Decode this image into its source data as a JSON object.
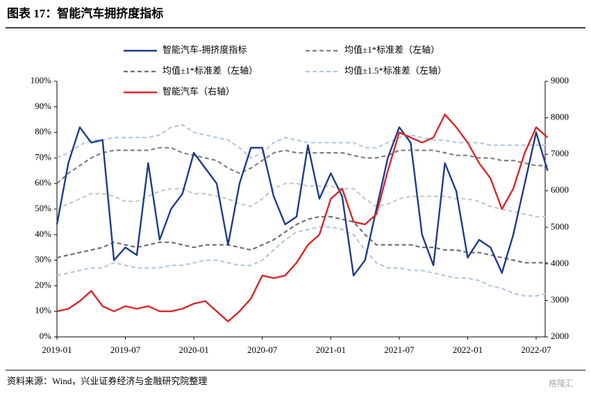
{
  "chart_data": {
    "type": "line",
    "title": "图表 17：智能汽车拥挤度指标",
    "source": "资料来源：Wind，兴业证券经济与金融研究院整理",
    "watermark": "格隆汇",
    "x": [
      "2019-01",
      "2019-02",
      "2019-03",
      "2019-04",
      "2019-05",
      "2019-06",
      "2019-07",
      "2019-08",
      "2019-09",
      "2019-10",
      "2019-11",
      "2019-12",
      "2020-01",
      "2020-02",
      "2020-03",
      "2020-04",
      "2020-05",
      "2020-06",
      "2020-07",
      "2020-08",
      "2020-09",
      "2020-10",
      "2020-11",
      "2020-12",
      "2021-01",
      "2021-02",
      "2021-03",
      "2021-04",
      "2021-05",
      "2021-06",
      "2021-07",
      "2021-08",
      "2021-09",
      "2021-10",
      "2021-11",
      "2021-12",
      "2022-01",
      "2022-02",
      "2022-03",
      "2022-04",
      "2022-05",
      "2022-06",
      "2022-07",
      "2022-08"
    ],
    "xticks": [
      "2019-01",
      "2019-07",
      "2020-01",
      "2020-07",
      "2021-01",
      "2021-07",
      "2022-01",
      "2022-07"
    ],
    "ylim": [
      0,
      100
    ],
    "yticks": [
      {
        "value": 0,
        "label": "0%"
      },
      {
        "value": 10,
        "label": "10%"
      },
      {
        "value": 20,
        "label": "20%"
      },
      {
        "value": 30,
        "label": "30%"
      },
      {
        "value": 40,
        "label": "40%"
      },
      {
        "value": 50,
        "label": "50%"
      },
      {
        "value": 60,
        "label": "60%"
      },
      {
        "value": 70,
        "label": "70%"
      },
      {
        "value": 80,
        "label": "80%"
      },
      {
        "value": 90,
        "label": "90%"
      },
      {
        "value": 100,
        "label": "100%"
      }
    ],
    "y2lim": [
      2000,
      9000
    ],
    "y2ticks": [
      2000,
      3000,
      4000,
      5000,
      6000,
      7000,
      8000,
      9000
    ],
    "series": [
      {
        "name": "智能汽车-拥挤度指标",
        "color": "#1f3a8a",
        "values": [
          44,
          68,
          82,
          76,
          77,
          30,
          35,
          32,
          68,
          38,
          50,
          56,
          72,
          66,
          60,
          36,
          60,
          74,
          74,
          55,
          44,
          47,
          75,
          54,
          64,
          55,
          24,
          30,
          50,
          70,
          82,
          76,
          40,
          28,
          68,
          57,
          31,
          38,
          35,
          25,
          40,
          60,
          80,
          65
        ]
      },
      {
        "name": "均值±1*标准差（左轴）",
        "color": "#808080",
        "dashed": true,
        "values": [
          60,
          64,
          67,
          70,
          72,
          73,
          73,
          73,
          73,
          74,
          74,
          72,
          71,
          70,
          69,
          66,
          64,
          66,
          69,
          72,
          73,
          72,
          72,
          72,
          72,
          72,
          71,
          70,
          70,
          71,
          73,
          73,
          73,
          73,
          72,
          71,
          71,
          70,
          70,
          69,
          69,
          68,
          67,
          67
        ]
      },
      {
        "name": "均值±1*标准差（左轴）",
        "color": "#707070",
        "dashed": true,
        "values": [
          31,
          32,
          33,
          34,
          35,
          37,
          36,
          35,
          36,
          37,
          37,
          36,
          35,
          36,
          36,
          36,
          35,
          34,
          36,
          38,
          41,
          44,
          46,
          47,
          47,
          46,
          45,
          40,
          36,
          36,
          36,
          36,
          35,
          35,
          34,
          34,
          33,
          33,
          32,
          31,
          30,
          29,
          29,
          29
        ]
      },
      {
        "name": "均值±1.5*标准差（左轴）",
        "color": "#b4c7e7",
        "dashed": true,
        "values": [
          70,
          72,
          75,
          77,
          77,
          78,
          78,
          78,
          78,
          79,
          82,
          83,
          80,
          79,
          78,
          77,
          74,
          70,
          72,
          76,
          78,
          77,
          76,
          76,
          76,
          76,
          76,
          74,
          74,
          76,
          78,
          79,
          78,
          77,
          77,
          76,
          76,
          76,
          75,
          75,
          75,
          75,
          75,
          75
        ]
      },
      {
        "name": "智能汽车（右轴）",
        "color": "#d62728",
        "axis": "y2",
        "values": [
          2700,
          2770,
          2980,
          3260,
          2840,
          2700,
          2840,
          2770,
          2840,
          2700,
          2700,
          2770,
          2910,
          2980,
          2700,
          2420,
          2700,
          3050,
          3680,
          3610,
          3680,
          4030,
          4520,
          4800,
          5780,
          6060,
          5150,
          5080,
          5360,
          6550,
          7600,
          7460,
          7320,
          7460,
          8090,
          7740,
          7320,
          6760,
          6340,
          5500,
          6060,
          7040,
          7740,
          7460
        ]
      },
      {
        "color": "#b4c7e7",
        "dashed": true,
        "values": [
          24,
          25,
          26,
          27,
          27,
          29,
          28,
          27,
          27,
          27,
          28,
          28,
          29,
          30,
          30,
          29,
          28,
          28,
          30,
          34,
          38,
          41,
          42,
          43,
          43,
          42,
          40,
          34,
          29,
          27,
          27,
          26,
          26,
          25,
          24,
          23,
          23,
          22,
          20,
          19,
          17,
          16,
          16,
          17
        ]
      },
      {
        "color": "#c8c8c8",
        "dashed": true,
        "values": [
          50,
          52,
          54,
          56,
          56,
          55,
          53,
          53,
          55,
          57,
          58,
          58,
          56,
          56,
          55,
          54,
          52,
          51,
          54,
          58,
          60,
          60,
          59,
          59,
          59,
          58,
          58,
          54,
          51,
          52,
          54,
          55,
          55,
          55,
          55,
          54,
          54,
          53,
          51,
          50,
          49,
          48,
          47,
          47
        ]
      }
    ]
  }
}
